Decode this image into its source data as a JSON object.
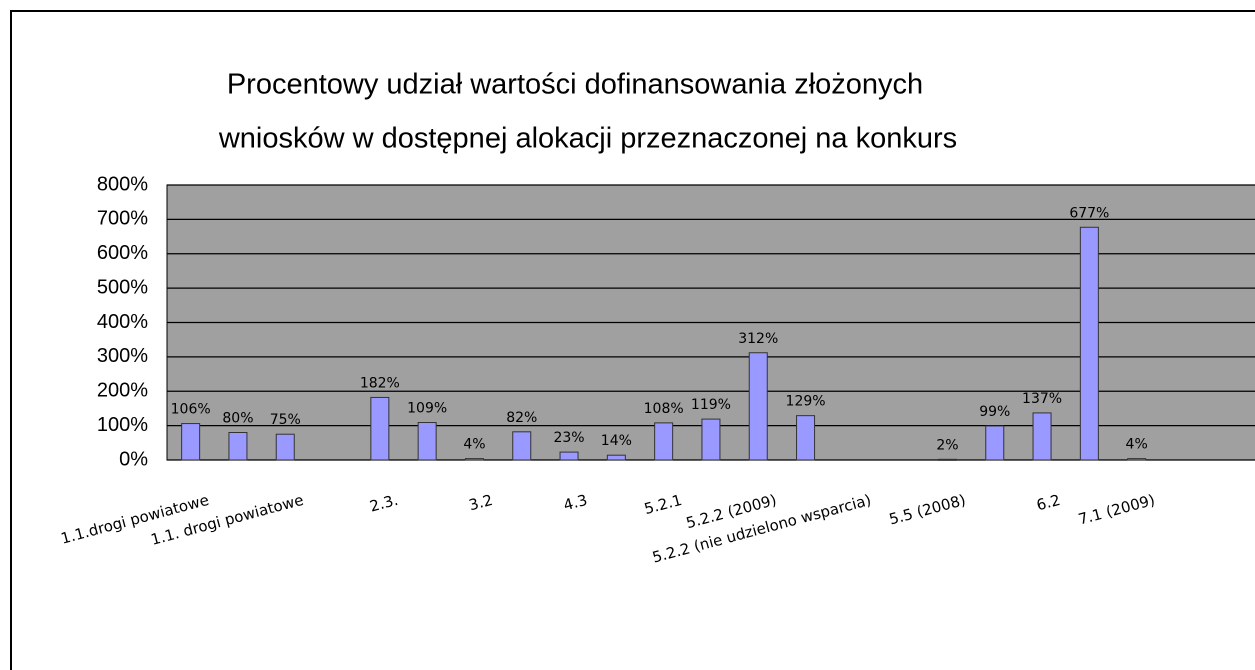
{
  "chart_data": {
    "type": "bar",
    "title": [
      "Procentowy udział wartości dofinansowania złożonych",
      "wniosków w dostępnej alokacji przeznaczonej na konkurs"
    ],
    "categories": [
      "1.1.drogi powiatowe",
      null,
      "1.1. drogi powiatowe",
      null,
      "2.3.",
      null,
      "3.2",
      null,
      "4.3",
      null,
      "5.2.1",
      null,
      "5.2.2 (2009)",
      null,
      "5.2.2 (nie udzielono wsparcia)",
      null,
      "5.5 (2008)",
      null,
      "6.2",
      null,
      "7.1 (2009)",
      null,
      null
    ],
    "values": [
      106,
      80,
      75,
      null,
      182,
      109,
      4,
      82,
      23,
      14,
      108,
      119,
      312,
      129,
      null,
      null,
      2,
      99,
      137,
      677,
      4,
      null,
      null
    ],
    "value_labels": [
      "106%",
      "80%",
      "75%",
      null,
      "182%",
      "109%",
      "4%",
      "82%",
      "23%",
      "14%",
      "108%",
      "119%",
      "312%",
      "129%",
      null,
      null,
      "2%",
      "99%",
      "137%",
      "677%",
      "4%",
      null,
      null
    ],
    "color": "#9999ff",
    "ylim": [
      0,
      800
    ],
    "yticks": [
      {
        "value": 0,
        "label": "0%"
      },
      {
        "value": 100,
        "label": "100%"
      },
      {
        "value": 200,
        "label": "200%"
      },
      {
        "value": 300,
        "label": "300%"
      },
      {
        "value": 400,
        "label": "400%"
      },
      {
        "value": 500,
        "label": "500%"
      },
      {
        "value": 600,
        "label": "600%"
      },
      {
        "value": 700,
        "label": "700%"
      },
      {
        "value": 800,
        "label": "800%"
      }
    ],
    "grid": true
  }
}
